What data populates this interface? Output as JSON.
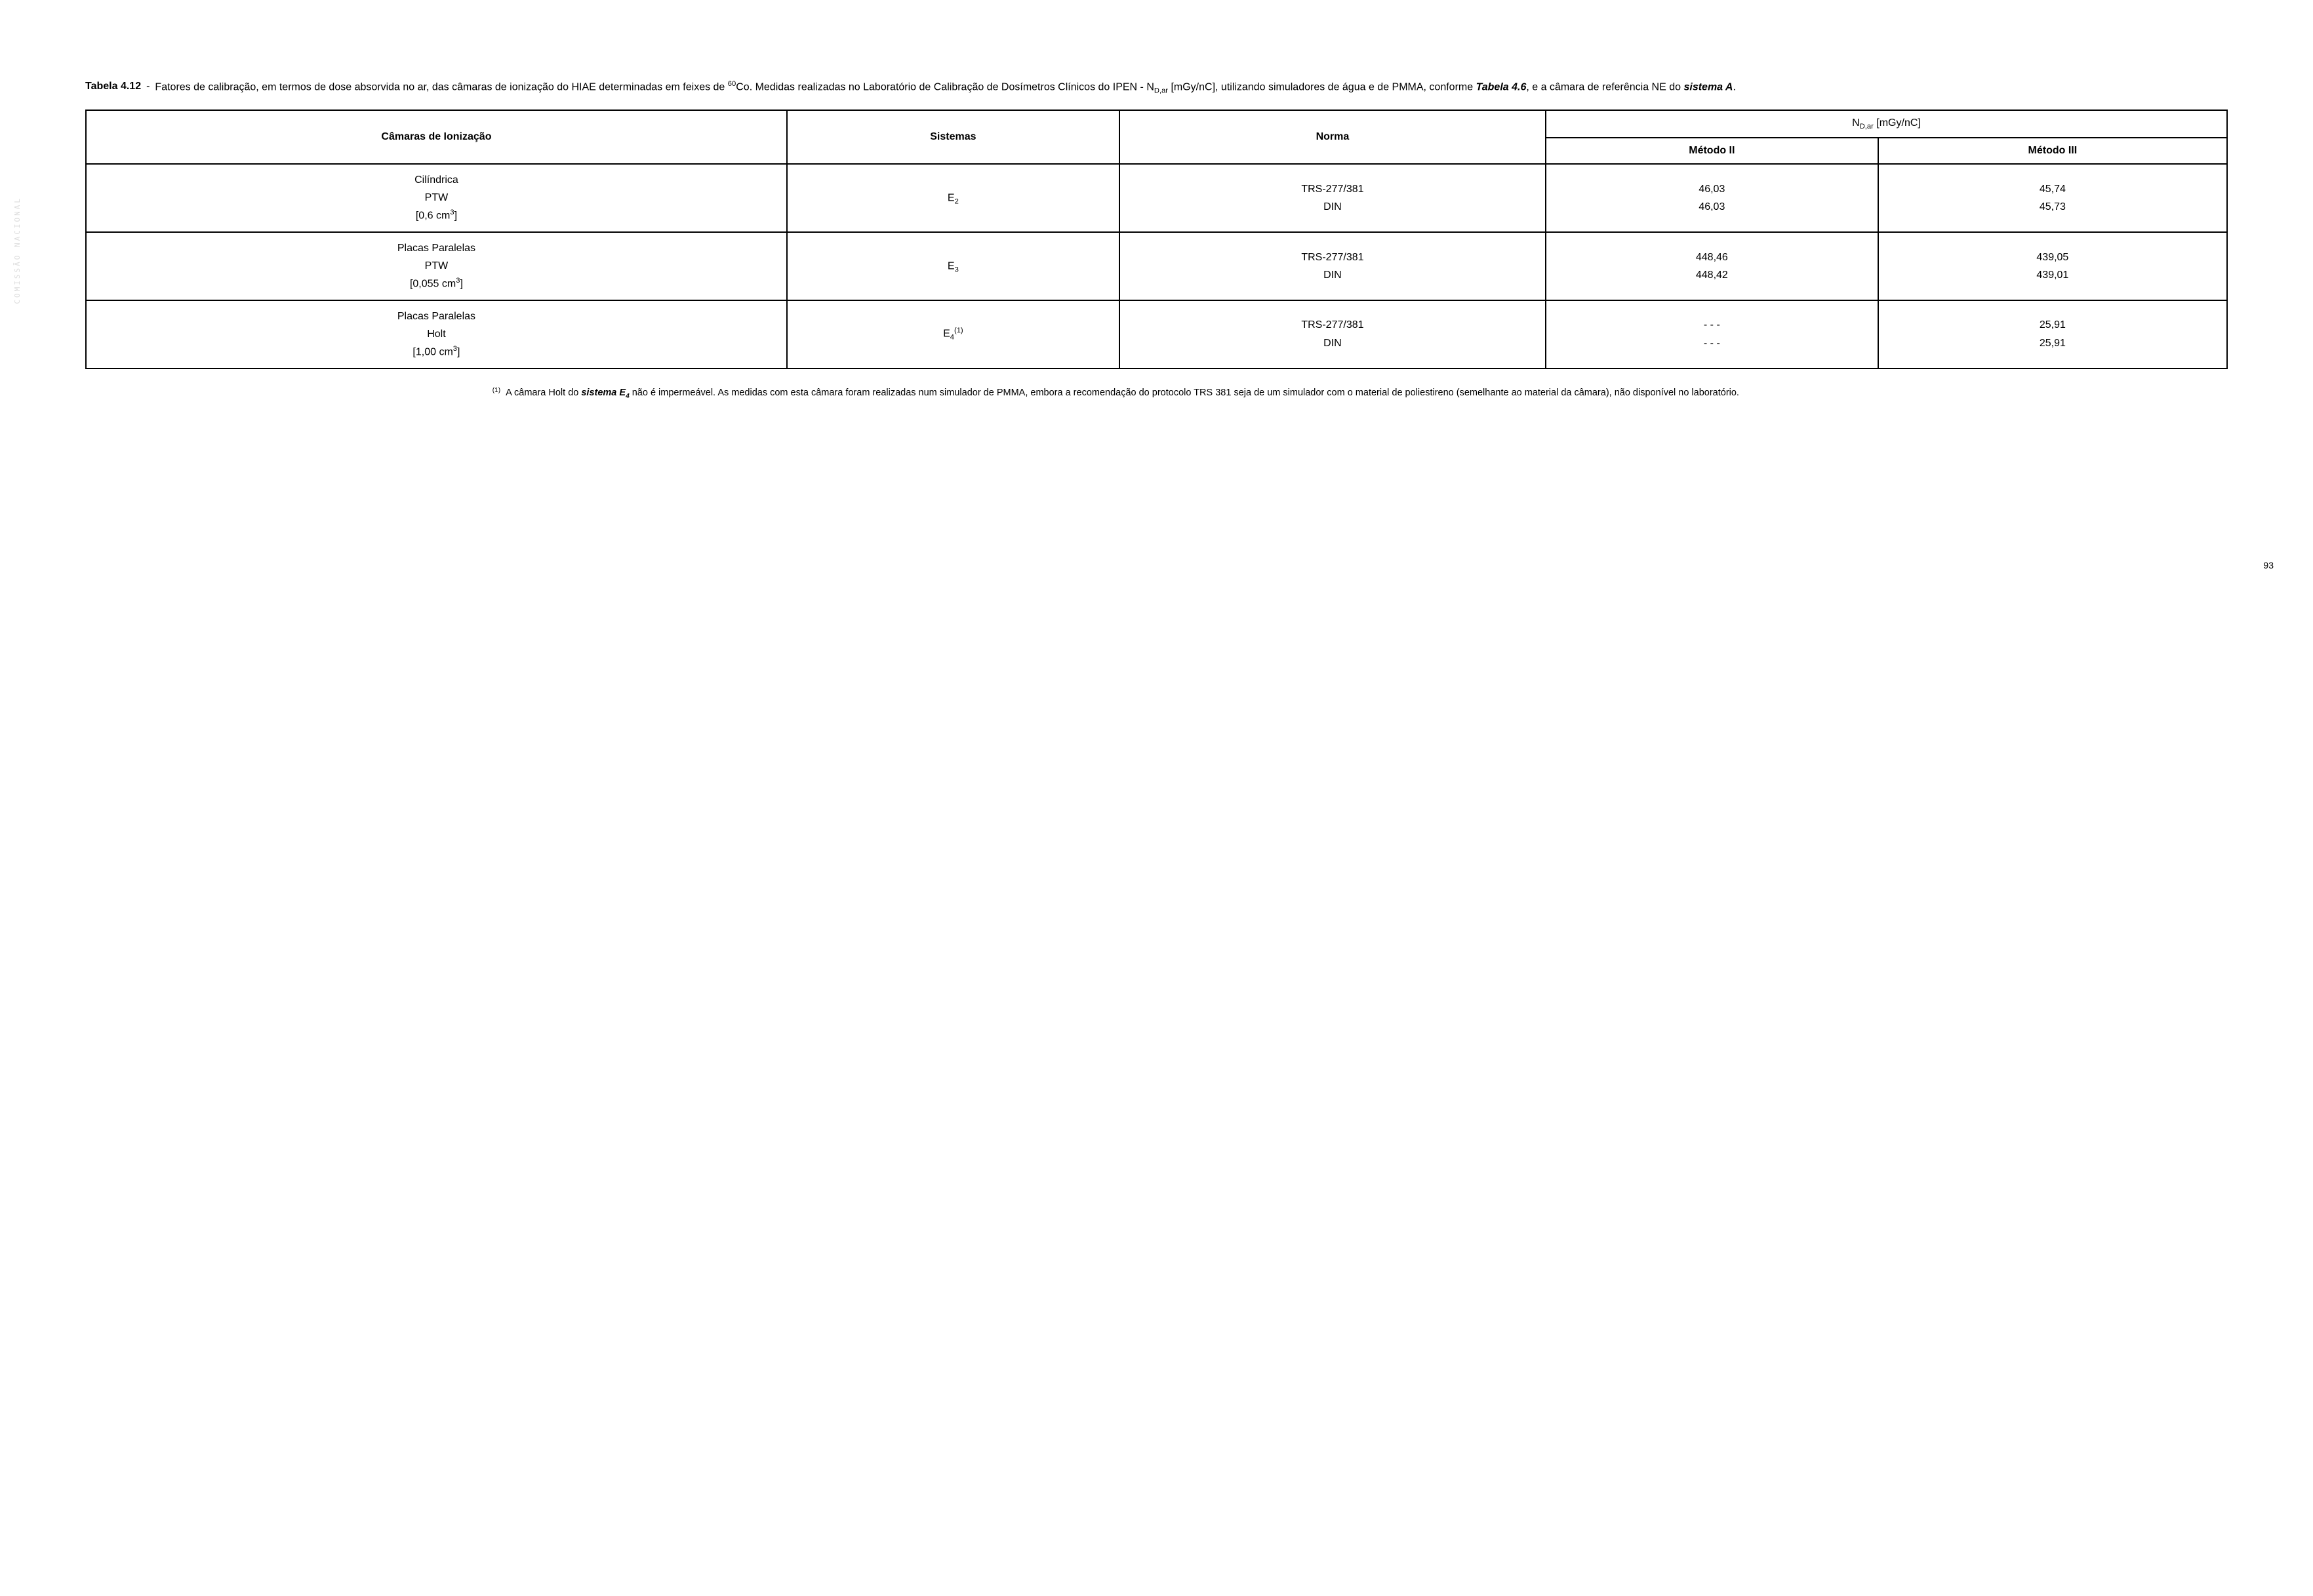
{
  "caption": {
    "label": "Tabela 4.12",
    "dash": "-",
    "text_a": "Fatores de calibração, em termos de dose absorvida no ar, das câmaras de ionização do HIAE determinadas em feixes de ",
    "co_pre": "60",
    "co_post": "Co. Medidas realizadas no Laboratório de Calibração de Dosímetros Clínicos do IPEN - N",
    "ndar_sub": "D,ar",
    "text_b": " [mGy/nC], utilizando simuladores de água e de PMMA, conforme ",
    "tab_ref": "Tabela 4.6",
    "text_c": ", e a câmara de referência NE do ",
    "sys_ref": "sistema A",
    "period": "."
  },
  "columns": {
    "c1": "Câmaras de Ionização",
    "c2": "Sistemas",
    "c3": "Norma",
    "c4_top_a": "N",
    "c4_top_sub": "D,ar",
    "c4_top_b": " [mGy/nC]",
    "c4a": "Método II",
    "c4b": "Método III"
  },
  "rows": [
    {
      "chamber_l1": "Cilíndrica",
      "chamber_l2": "PTW",
      "chamber_l3a": "[0,6 cm",
      "chamber_l3b": "]",
      "system_base": "E",
      "system_sub": "2",
      "system_sup": "",
      "norm_l1": "TRS-277/381",
      "norm_l2": "DIN",
      "m2_l1": "46,03",
      "m2_l2": "46,03",
      "m3_l1": "45,74",
      "m3_l2": "45,73"
    },
    {
      "chamber_l1": "Placas Paralelas",
      "chamber_l2": "PTW",
      "chamber_l3a": "[0,055 cm",
      "chamber_l3b": "]",
      "system_base": "E",
      "system_sub": "3",
      "system_sup": "",
      "norm_l1": "TRS-277/381",
      "norm_l2": "DIN",
      "m2_l1": "448,46",
      "m2_l2": "448,42",
      "m3_l1": "439,05",
      "m3_l2": "439,01"
    },
    {
      "chamber_l1": "Placas Paralelas",
      "chamber_l2": "Holt",
      "chamber_l3a": "[1,00 cm",
      "chamber_l3b": "]",
      "system_base": "E",
      "system_sub": "4",
      "system_sup": "(1)",
      "norm_l1": "TRS-277/381",
      "norm_l2": "DIN",
      "m2_l1": "- - -",
      "m2_l2": "- - -",
      "m3_l1": "25,91",
      "m3_l2": "25,91"
    }
  ],
  "footnote": {
    "marker": "(1)",
    "text_a": "A câmara Holt do ",
    "sys_ref": "sistema E",
    "sys_sub": "4",
    "text_b": " não é impermeável. As medidas com esta câmara foram realizadas num simulador de PMMA, embora a recomendação do protocolo TRS 381 seja de um simulador com o material de poliestireno (semelhante ao material da câmara), não disponível no laboratório."
  },
  "page_number": "93",
  "side_noise": "COMISSÃO NACIONAL"
}
